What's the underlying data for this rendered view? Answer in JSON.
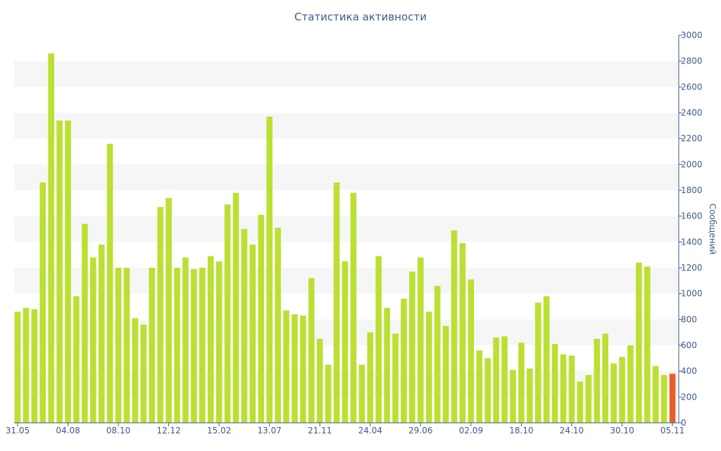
{
  "chart_data": {
    "type": "bar",
    "title": "Статистика активности",
    "xlabel": "",
    "ylabel": "Сообщений",
    "y_axis_side": "right",
    "ylim": [
      0,
      3000
    ],
    "yticks": [
      0,
      200,
      400,
      600,
      800,
      1000,
      1200,
      1400,
      1600,
      1800,
      2000,
      2200,
      2400,
      2600,
      2800,
      3000
    ],
    "x_tick_labels": [
      {
        "label": "31.05",
        "index": 0
      },
      {
        "label": "04.08",
        "index": 6
      },
      {
        "label": "08.10",
        "index": 12
      },
      {
        "label": "12.12",
        "index": 18
      },
      {
        "label": "15.02",
        "index": 24
      },
      {
        "label": "13.07",
        "index": 30
      },
      {
        "label": "21.11",
        "index": 36
      },
      {
        "label": "24.04",
        "index": 42
      },
      {
        "label": "29.06",
        "index": 48
      },
      {
        "label": "02.09",
        "index": 54
      },
      {
        "label": "18.10",
        "index": 60
      },
      {
        "label": "24.10",
        "index": 66
      },
      {
        "label": "30.10",
        "index": 72
      },
      {
        "label": "05.11",
        "index": 78
      }
    ],
    "values": [
      860,
      890,
      880,
      1860,
      2860,
      2340,
      2340,
      980,
      1540,
      1280,
      1380,
      2160,
      1200,
      1200,
      810,
      760,
      1200,
      1670,
      1740,
      1200,
      1280,
      1190,
      1200,
      1290,
      1250,
      1690,
      1780,
      1500,
      1380,
      1610,
      2370,
      1510,
      870,
      840,
      830,
      1120,
      650,
      450,
      1860,
      1250,
      1780,
      450,
      700,
      1290,
      890,
      690,
      960,
      1170,
      1280,
      860,
      1060,
      750,
      1490,
      1390,
      1110,
      560,
      500,
      660,
      670,
      410,
      620,
      420,
      930,
      980,
      610,
      530,
      520,
      320,
      370,
      650,
      690,
      460,
      510,
      600,
      1240,
      1210,
      440,
      370,
      380
    ],
    "colors": {
      "bar": "#bbe033",
      "highlight_bar": "#e85e2a",
      "band": "#f6f6f6",
      "axis": "#3e5a8c"
    },
    "highlight_last": true
  }
}
